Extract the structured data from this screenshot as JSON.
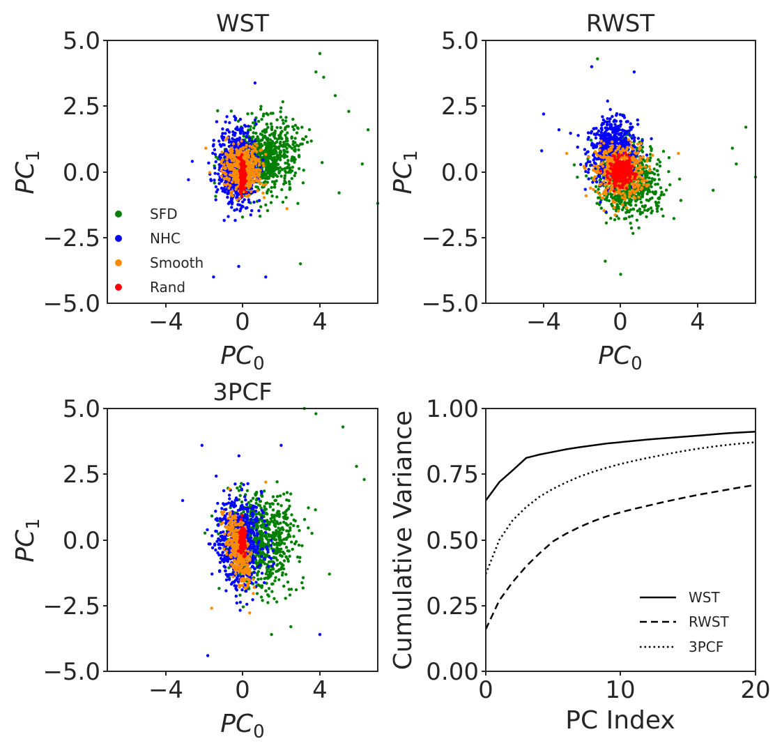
{
  "figure": {
    "panels": [
      {
        "title": "WST",
        "xlabel_main": "PC",
        "xlabel_sub": "0",
        "ylabel_main": "PC",
        "ylabel_sub": "1"
      },
      {
        "title": "RWST",
        "xlabel_main": "PC",
        "xlabel_sub": "0",
        "ylabel_main": "PC",
        "ylabel_sub": "1"
      },
      {
        "title": "3PCF",
        "xlabel_main": "PC",
        "xlabel_sub": "0",
        "ylabel_main": "PC",
        "ylabel_sub": "1"
      },
      {
        "title": "",
        "xlabel": "PC Index",
        "ylabel": "Cumulative Variance"
      }
    ],
    "scatter_xticks": [
      "−4",
      "0",
      "4"
    ],
    "scatter_yticks": [
      "5.0",
      "2.5",
      "0.0",
      "−2.5",
      "−5.0"
    ],
    "variance_xticks": [
      "0",
      "10",
      "20"
    ],
    "variance_yticks": [
      "1.00",
      "0.75",
      "0.50",
      "0.25",
      "0.00"
    ],
    "scatter_legend": [
      "SFD",
      "NHC",
      "Smooth",
      "Rand"
    ],
    "variance_legend": [
      "WST",
      "RWST",
      "3PCF"
    ]
  },
  "colors": {
    "SFD": "#008000",
    "NHC": "#0000ff",
    "Smooth": "#ff8c00",
    "Rand": "#ff0000",
    "axis": "#262626",
    "line": "#000000"
  },
  "chart_data": [
    {
      "type": "scatter",
      "title": "WST",
      "xlabel": "PC_0",
      "ylabel": "PC_1",
      "xlim": [
        -7,
        7
      ],
      "ylim": [
        -5,
        5
      ],
      "xticks": [
        -4,
        0,
        4
      ],
      "yticks": [
        -5.0,
        -2.5,
        0.0,
        2.5,
        5.0
      ],
      "grid": false,
      "legend_position": "lower-left",
      "series": [
        {
          "name": "SFD",
          "color": "#008000",
          "cluster": {
            "center": [
              1.2,
              0.5
            ],
            "spread": [
              1.6,
              1.3
            ],
            "rotation": 0.2,
            "n": 700
          },
          "outliers": [
            [
              4.0,
              4.5
            ],
            [
              3.8,
              3.8
            ],
            [
              4.2,
              3.6
            ],
            [
              5.5,
              2.3
            ],
            [
              6.2,
              0.3
            ],
            [
              7.0,
              -1.2
            ],
            [
              5.0,
              -0.8
            ],
            [
              3.0,
              -3.5
            ],
            [
              6.5,
              1.6
            ],
            [
              4.8,
              2.9
            ]
          ]
        },
        {
          "name": "NHC",
          "color": "#0000ff",
          "cluster": {
            "center": [
              -0.3,
              0.2
            ],
            "spread": [
              0.9,
              1.35
            ],
            "rotation": 0.0,
            "n": 650
          },
          "outliers": [
            [
              -2.8,
              -0.3
            ],
            [
              -1.5,
              -4.0
            ],
            [
              1.2,
              -4.0
            ],
            [
              -0.2,
              -3.6
            ],
            [
              -2.6,
              0.4
            ]
          ]
        },
        {
          "name": "Smooth",
          "color": "#ff8c00",
          "cluster": {
            "center": [
              0.0,
              0.1
            ],
            "spread": [
              0.85,
              0.85
            ],
            "rotation": -0.35,
            "n": 450
          },
          "outliers": [
            [
              2.3,
              -1.4
            ],
            [
              -1.9,
              0.9
            ]
          ]
        },
        {
          "name": "Rand",
          "color": "#ff0000",
          "cluster": {
            "center": [
              0.0,
              -0.1
            ],
            "spread": [
              0.12,
              0.55
            ],
            "rotation": 0.0,
            "n": 200
          },
          "outliers": []
        }
      ]
    },
    {
      "type": "scatter",
      "title": "RWST",
      "xlabel": "PC_0",
      "ylabel": "PC_1",
      "xlim": [
        -7,
        7
      ],
      "ylim": [
        -5,
        5
      ],
      "xticks": [
        -4,
        0,
        4
      ],
      "yticks": [
        -5.0,
        -2.5,
        0.0,
        2.5,
        5.0
      ],
      "grid": false,
      "series": [
        {
          "name": "SFD",
          "color": "#008000",
          "cluster": {
            "center": [
              0.4,
              -0.3
            ],
            "spread": [
              1.5,
              1.3
            ],
            "rotation": 0.0,
            "n": 650
          },
          "outliers": [
            [
              -1.2,
              4.3
            ],
            [
              6.5,
              1.7
            ],
            [
              7.0,
              -0.2
            ],
            [
              5.8,
              0.9
            ],
            [
              0.0,
              -3.9
            ],
            [
              -0.8,
              -3.4
            ],
            [
              4.8,
              -0.7
            ],
            [
              6.0,
              0.3
            ]
          ]
        },
        {
          "name": "NHC",
          "color": "#0000ff",
          "cluster": {
            "center": [
              -0.4,
              0.8
            ],
            "spread": [
              1.15,
              1.05
            ],
            "rotation": 0.0,
            "n": 650
          },
          "outliers": [
            [
              -4.0,
              2.2
            ],
            [
              -4.1,
              0.8
            ],
            [
              -1.5,
              4.0
            ],
            [
              0.7,
              3.8
            ],
            [
              -3.2,
              1.6
            ]
          ]
        },
        {
          "name": "Smooth",
          "color": "#ff8c00",
          "cluster": {
            "center": [
              0.0,
              0.0
            ],
            "spread": [
              1.15,
              0.95
            ],
            "rotation": 0.0,
            "n": 500
          },
          "outliers": [
            [
              3.0,
              0.7
            ],
            [
              -2.8,
              0.7
            ]
          ]
        },
        {
          "name": "Rand",
          "color": "#ff0000",
          "cluster": {
            "center": [
              0.0,
              0.0
            ],
            "spread": [
              0.5,
              0.45
            ],
            "rotation": 0.0,
            "n": 320
          },
          "outliers": []
        }
      ]
    },
    {
      "type": "scatter",
      "title": "3PCF",
      "xlabel": "PC_0",
      "ylabel": "PC_1",
      "xlim": [
        -7,
        7
      ],
      "ylim": [
        -5,
        5
      ],
      "xticks": [
        -4,
        0,
        4
      ],
      "yticks": [
        -5.0,
        -2.5,
        0.0,
        2.5,
        5.0
      ],
      "grid": false,
      "series": [
        {
          "name": "SFD",
          "color": "#008000",
          "cluster": {
            "center": [
              1.0,
              -0.1
            ],
            "spread": [
              1.6,
              1.65
            ],
            "rotation": 0.25,
            "n": 700
          },
          "outliers": [
            [
              3.2,
              5.0
            ],
            [
              3.8,
              4.8
            ],
            [
              5.2,
              4.3
            ],
            [
              6.3,
              2.3
            ],
            [
              5.9,
              2.8
            ],
            [
              4.5,
              -1.3
            ],
            [
              1.5,
              -3.6
            ],
            [
              2.5,
              -3.3
            ]
          ]
        },
        {
          "name": "NHC",
          "color": "#0000ff",
          "cluster": {
            "center": [
              -0.2,
              -0.1
            ],
            "spread": [
              1.05,
              1.55
            ],
            "rotation": 0.15,
            "n": 650
          },
          "outliers": [
            [
              -2.1,
              3.6
            ],
            [
              -1.8,
              -4.4
            ],
            [
              4.0,
              -3.6
            ],
            [
              -3.1,
              1.5
            ],
            [
              2.0,
              3.6
            ]
          ]
        },
        {
          "name": "Smooth",
          "color": "#ff8c00",
          "cluster": {
            "center": [
              -0.2,
              -0.4
            ],
            "spread": [
              0.45,
              1.3
            ],
            "rotation": 0.35,
            "n": 350
          },
          "outliers": [
            [
              -1.6,
              -2.6
            ],
            [
              1.2,
              2.2
            ]
          ]
        },
        {
          "name": "Rand",
          "color": "#ff0000",
          "cluster": {
            "center": [
              0.0,
              0.0
            ],
            "spread": [
              0.13,
              0.45
            ],
            "rotation": 0.0,
            "n": 150
          },
          "outliers": []
        }
      ]
    },
    {
      "type": "line",
      "title": "",
      "xlabel": "PC Index",
      "ylabel": "Cumulative Variance",
      "xlim": [
        0,
        20
      ],
      "ylim": [
        0,
        1
      ],
      "xticks": [
        0,
        10,
        20
      ],
      "yticks": [
        0.0,
        0.25,
        0.5,
        0.75,
        1.0
      ],
      "grid": false,
      "legend_position": "lower-right",
      "x": [
        0,
        1,
        2,
        3,
        4,
        5,
        6,
        7,
        8,
        9,
        10,
        11,
        12,
        13,
        14,
        15,
        16,
        17,
        18,
        19,
        20
      ],
      "series": [
        {
          "name": "WST",
          "style": "solid",
          "values": [
            0.65,
            0.72,
            0.765,
            0.812,
            0.825,
            0.835,
            0.845,
            0.853,
            0.86,
            0.867,
            0.872,
            0.877,
            0.882,
            0.886,
            0.89,
            0.894,
            0.898,
            0.902,
            0.906,
            0.909,
            0.912
          ]
        },
        {
          "name": "RWST",
          "style": "dashed",
          "values": [
            0.16,
            0.27,
            0.34,
            0.4,
            0.45,
            0.495,
            0.525,
            0.55,
            0.572,
            0.59,
            0.605,
            0.618,
            0.63,
            0.642,
            0.653,
            0.664,
            0.674,
            0.683,
            0.692,
            0.701,
            0.709
          ]
        },
        {
          "name": "3PCF",
          "style": "dotted",
          "values": [
            0.37,
            0.5,
            0.575,
            0.625,
            0.665,
            0.695,
            0.72,
            0.742,
            0.76,
            0.775,
            0.789,
            0.801,
            0.812,
            0.822,
            0.832,
            0.841,
            0.849,
            0.856,
            0.862,
            0.867,
            0.872
          ]
        }
      ]
    }
  ]
}
